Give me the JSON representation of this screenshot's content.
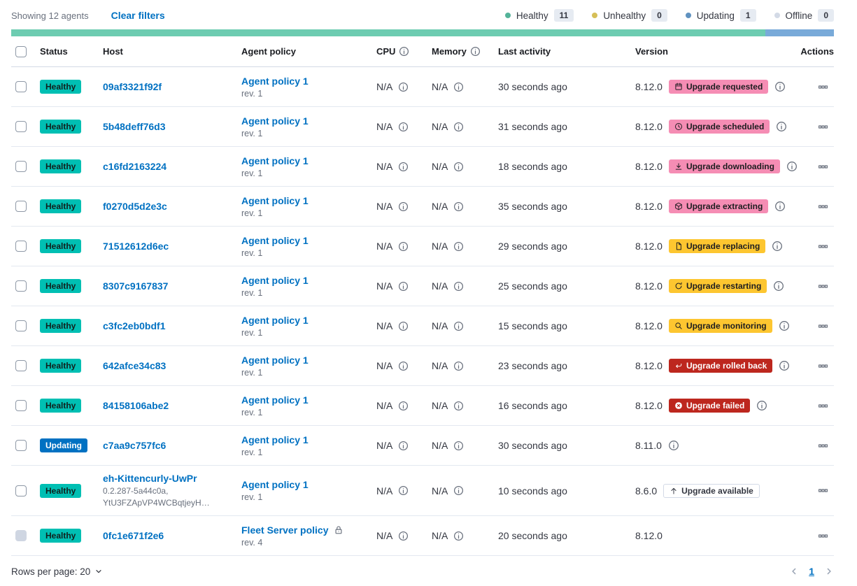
{
  "toolbar": {
    "showing": "Showing 12 agents",
    "clear_filters": "Clear filters"
  },
  "legend": [
    {
      "label": "Healthy",
      "count": "11",
      "dot_color": "#54B399"
    },
    {
      "label": "Unhealthy",
      "count": "0",
      "dot_color": "#D6BF57"
    },
    {
      "label": "Updating",
      "count": "1",
      "dot_color": "#6092C0"
    },
    {
      "label": "Offline",
      "count": "0",
      "dot_color": "#D3DAE6"
    }
  ],
  "health_bar": {
    "segments": [
      {
        "status": "healthy",
        "value": 11,
        "color": "#6DCCB1"
      },
      {
        "status": "updating",
        "value": 1,
        "color": "#79AAD9"
      }
    ]
  },
  "colors": {
    "link_blue": "#0071C2",
    "healthy_teal": "#00BFB3",
    "updating_blue": "#0071C2",
    "accent_pink": "#F58DB4",
    "warning_yellow": "#FDC630",
    "danger_red": "#BD271E"
  },
  "table": {
    "headers": [
      {
        "label": "Status"
      },
      {
        "label": "Host"
      },
      {
        "label": "Agent policy"
      },
      {
        "label": "CPU",
        "info": true
      },
      {
        "label": "Memory",
        "info": true
      },
      {
        "label": "Last activity"
      },
      {
        "label": "Version"
      },
      {
        "label": "Actions",
        "align": "right"
      }
    ],
    "rows": [
      {
        "status": {
          "label": "Healthy",
          "type": "healthy"
        },
        "host": {
          "name": "09af3321f92f"
        },
        "policy": {
          "name": "Agent policy 1",
          "rev": "rev. 1"
        },
        "cpu": "N/A",
        "memory": "N/A",
        "last_activity": "30 seconds ago",
        "version": "8.12.0",
        "upgrade": {
          "label": "Upgrade requested",
          "style": "pink",
          "icon": "calendar"
        },
        "version_info": true
      },
      {
        "status": {
          "label": "Healthy",
          "type": "healthy"
        },
        "host": {
          "name": "5b48deff76d3"
        },
        "policy": {
          "name": "Agent policy 1",
          "rev": "rev. 1"
        },
        "cpu": "N/A",
        "memory": "N/A",
        "last_activity": "31 seconds ago",
        "version": "8.12.0",
        "upgrade": {
          "label": "Upgrade scheduled",
          "style": "pink",
          "icon": "clock"
        },
        "version_info": true
      },
      {
        "status": {
          "label": "Healthy",
          "type": "healthy"
        },
        "host": {
          "name": "c16fd2163224"
        },
        "policy": {
          "name": "Agent policy 1",
          "rev": "rev. 1"
        },
        "cpu": "N/A",
        "memory": "N/A",
        "last_activity": "18 seconds ago",
        "version": "8.12.0",
        "upgrade": {
          "label": "Upgrade downloading",
          "style": "pink",
          "icon": "download"
        },
        "version_info": true
      },
      {
        "status": {
          "label": "Healthy",
          "type": "healthy"
        },
        "host": {
          "name": "f0270d5d2e3c"
        },
        "policy": {
          "name": "Agent policy 1",
          "rev": "rev. 1"
        },
        "cpu": "N/A",
        "memory": "N/A",
        "last_activity": "35 seconds ago",
        "version": "8.12.0",
        "upgrade": {
          "label": "Upgrade extracting",
          "style": "pink",
          "icon": "package"
        },
        "version_info": true
      },
      {
        "status": {
          "label": "Healthy",
          "type": "healthy"
        },
        "host": {
          "name": "71512612d6ec"
        },
        "policy": {
          "name": "Agent policy 1",
          "rev": "rev. 1"
        },
        "cpu": "N/A",
        "memory": "N/A",
        "last_activity": "29 seconds ago",
        "version": "8.12.0",
        "upgrade": {
          "label": "Upgrade replacing",
          "style": "yellow",
          "icon": "document"
        },
        "version_info": true
      },
      {
        "status": {
          "label": "Healthy",
          "type": "healthy"
        },
        "host": {
          "name": "8307c9167837"
        },
        "policy": {
          "name": "Agent policy 1",
          "rev": "rev. 1"
        },
        "cpu": "N/A",
        "memory": "N/A",
        "last_activity": "25 seconds ago",
        "version": "8.12.0",
        "upgrade": {
          "label": "Upgrade restarting",
          "style": "yellow",
          "icon": "refresh"
        },
        "version_info": true
      },
      {
        "status": {
          "label": "Healthy",
          "type": "healthy"
        },
        "host": {
          "name": "c3fc2eb0bdf1"
        },
        "policy": {
          "name": "Agent policy 1",
          "rev": "rev. 1"
        },
        "cpu": "N/A",
        "memory": "N/A",
        "last_activity": "15 seconds ago",
        "version": "8.12.0",
        "upgrade": {
          "label": "Upgrade monitoring",
          "style": "yellow",
          "icon": "inspect"
        },
        "version_info": true
      },
      {
        "status": {
          "label": "Healthy",
          "type": "healthy"
        },
        "host": {
          "name": "642afce34c83"
        },
        "policy": {
          "name": "Agent policy 1",
          "rev": "rev. 1"
        },
        "cpu": "N/A",
        "memory": "N/A",
        "last_activity": "23 seconds ago",
        "version": "8.12.0",
        "upgrade": {
          "label": "Upgrade rolled back",
          "style": "red",
          "icon": "return"
        },
        "version_info": true
      },
      {
        "status": {
          "label": "Healthy",
          "type": "healthy"
        },
        "host": {
          "name": "84158106abe2"
        },
        "policy": {
          "name": "Agent policy 1",
          "rev": "rev. 1"
        },
        "cpu": "N/A",
        "memory": "N/A",
        "last_activity": "16 seconds ago",
        "version": "8.12.0",
        "upgrade": {
          "label": "Upgrade failed",
          "style": "red",
          "icon": "error"
        },
        "version_info": true
      },
      {
        "status": {
          "label": "Updating",
          "type": "updating"
        },
        "host": {
          "name": "c7aa9c757fc6"
        },
        "policy": {
          "name": "Agent policy 1",
          "rev": "rev. 1"
        },
        "cpu": "N/A",
        "memory": "N/A",
        "last_activity": "30 seconds ago",
        "version": "8.11.0",
        "upgrade": null,
        "version_info": true
      },
      {
        "status": {
          "label": "Healthy",
          "type": "healthy"
        },
        "host": {
          "name": "eh-Kittencurly-UwPr",
          "sub_lines": [
            "0.2.287-5a44c0a,",
            "YtU3FZApVP4WCBqtjeyH…"
          ]
        },
        "policy": {
          "name": "Agent policy 1",
          "rev": "rev. 1"
        },
        "cpu": "N/A",
        "memory": "N/A",
        "last_activity": "10 seconds ago",
        "version": "8.6.0",
        "upgrade": {
          "label": "Upgrade available",
          "style": "hollow",
          "icon": "up"
        },
        "version_info": false
      },
      {
        "status": {
          "label": "Healthy",
          "type": "healthy"
        },
        "host": {
          "name": "0fc1e671f2e6"
        },
        "policy": {
          "name": "Fleet Server policy",
          "rev": "rev. 4",
          "locked": true
        },
        "cpu": "N/A",
        "memory": "N/A",
        "last_activity": "20 seconds ago",
        "version": "8.12.0",
        "upgrade": null,
        "version_info": false,
        "checkbox_disabled": true
      }
    ]
  },
  "footer": {
    "rows_per_page": "Rows per page: 20",
    "page": "1"
  }
}
